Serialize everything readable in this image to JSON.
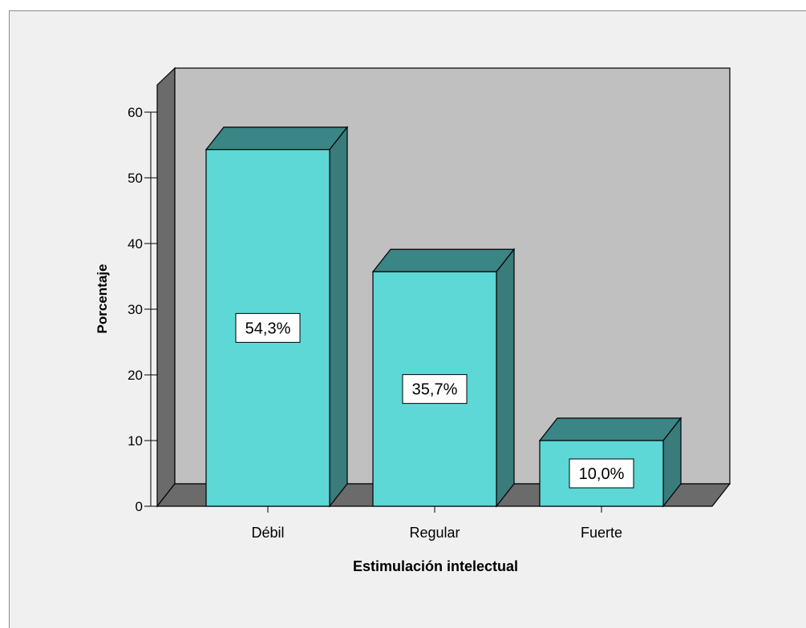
{
  "chart_data": {
    "type": "bar",
    "categories": [
      "Débil",
      "Regular",
      "Fuerte"
    ],
    "values": [
      54.3,
      35.7,
      10.0
    ],
    "data_labels": [
      "54,3%",
      "35,7%",
      "10,0%"
    ],
    "title": "",
    "xlabel": "Estimulación intelectual",
    "ylabel": "Porcentaje",
    "ylim": [
      0,
      60
    ],
    "yticks": [
      "0",
      "10",
      "20",
      "30",
      "40",
      "50",
      "60"
    ],
    "grid": false,
    "legend": "none",
    "style": "3d",
    "colors": {
      "bar_front": "#5ed7d7",
      "bar_top": "#3a8585",
      "bar_side": "#3a7b7b",
      "back_wall": "#c0c0c0",
      "side_wall": "#6b6b6b",
      "floor": "#6b6b6b",
      "frame_bg": "#f0f0f0",
      "outline": "#000000"
    }
  }
}
